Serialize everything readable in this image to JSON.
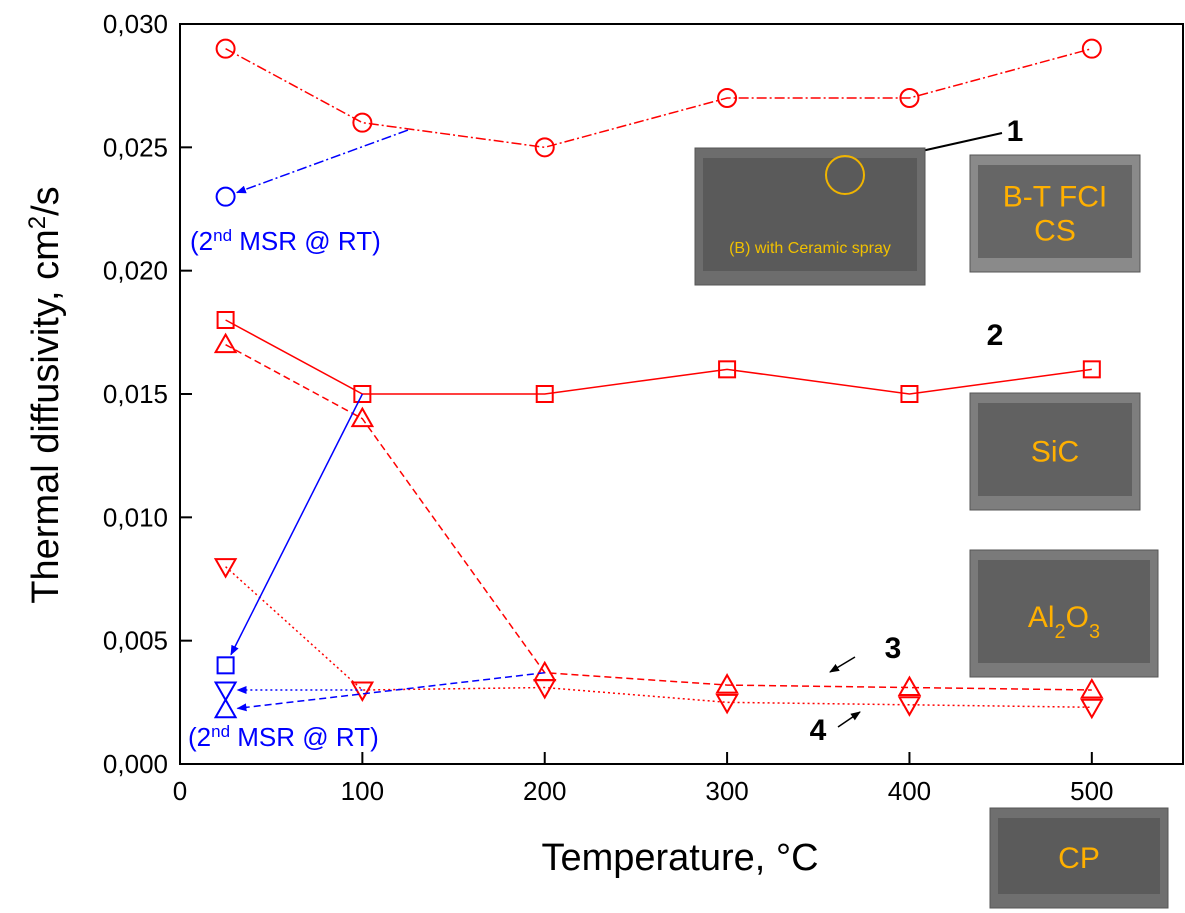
{
  "chart_data": {
    "type": "line",
    "xlabel": "Temperature, °C",
    "ylabel": [
      "Thermal diffusivity, cm",
      "2",
      "/s"
    ],
    "x": [
      25,
      100,
      200,
      300,
      400,
      500
    ],
    "xlim": [
      0,
      550
    ],
    "xticks": [
      0,
      100,
      200,
      300,
      400,
      500
    ],
    "ylim": [
      0,
      0.03
    ],
    "yticks": [
      {
        "value": 0,
        "label": "0,000"
      },
      {
        "value": 0.005,
        "label": "0,005"
      },
      {
        "value": 0.01,
        "label": "0,010"
      },
      {
        "value": 0.015,
        "label": "0,015"
      },
      {
        "value": 0.02,
        "label": "0,020"
      },
      {
        "value": 0.025,
        "label": "0,025"
      },
      {
        "value": 0.03,
        "label": "0,030"
      }
    ],
    "series": [
      {
        "name": "1",
        "color": "#ff0000",
        "marker": "circle",
        "line_style": "dashdot",
        "values": [
          0.029,
          0.026,
          0.025,
          0.027,
          0.027,
          0.029
        ],
        "retest": 0.023
      },
      {
        "name": "2",
        "color": "#ff0000",
        "marker": "square",
        "line_style": "solid",
        "values": [
          0.018,
          0.015,
          0.015,
          0.016,
          0.015,
          0.016
        ],
        "retest": 0.004
      },
      {
        "name": "3",
        "color": "#ff0000",
        "marker": "triangle-up",
        "line_style": "dashed",
        "values": [
          0.017,
          0.014,
          0.0037,
          0.0032,
          0.0031,
          0.003
        ],
        "retest": 0.0022
      },
      {
        "name": "4",
        "color": "#ff0000",
        "marker": "triangle-down",
        "line_style": "dotted",
        "values": [
          0.008,
          0.003,
          0.0031,
          0.0025,
          0.0024,
          0.0023
        ],
        "retest": 0.003
      }
    ],
    "retest_color": "#0000ff",
    "annotations": [
      [
        "(2",
        "nd",
        " MSR @ RT)"
      ],
      [
        "(2",
        "nd",
        " MSR @ RT)"
      ]
    ],
    "insets": [
      [
        "(B) with Ceramic spray"
      ],
      [
        "B-T FCI",
        "CS"
      ],
      [
        "SiC"
      ],
      [
        "Al",
        "2",
        "O",
        "3"
      ],
      [
        "CP"
      ]
    ]
  }
}
